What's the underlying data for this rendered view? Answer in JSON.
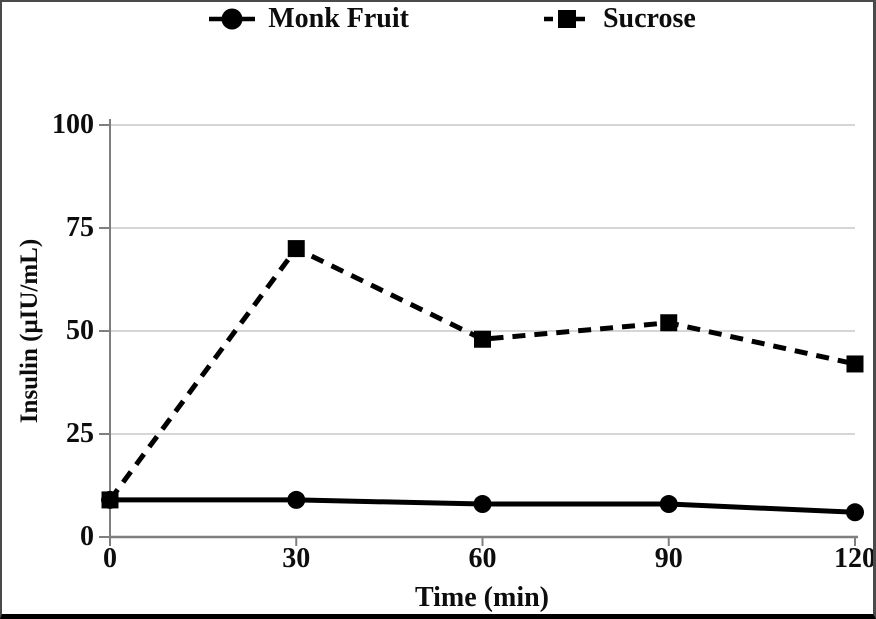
{
  "chart_data": {
    "type": "line",
    "xlabel": "Time (min)",
    "ylabel": "Insulin (μIU/mL)",
    "x": [
      0,
      30,
      60,
      90,
      120
    ],
    "series": [
      {
        "name": "Monk Fruit",
        "marker": "circle",
        "line_style": "solid",
        "values": [
          9,
          9,
          8,
          8,
          6
        ]
      },
      {
        "name": "Sucrose",
        "marker": "square",
        "line_style": "dashed",
        "values": [
          9,
          70,
          48,
          52,
          42
        ]
      }
    ],
    "xlim": [
      0,
      120
    ],
    "ylim": [
      0,
      100
    ],
    "xticks": [
      0,
      30,
      60,
      90,
      120
    ],
    "yticks": [
      0,
      25,
      50,
      75,
      100
    ],
    "grid": "horizontal",
    "legend_position": "top",
    "colors": {
      "series": "#000000",
      "axis": "#7f7f7f",
      "gridline": "#c9c9c9",
      "frame_border": "#4a4a4a",
      "bottom_border": "#000000",
      "background": "#ffffff"
    }
  }
}
